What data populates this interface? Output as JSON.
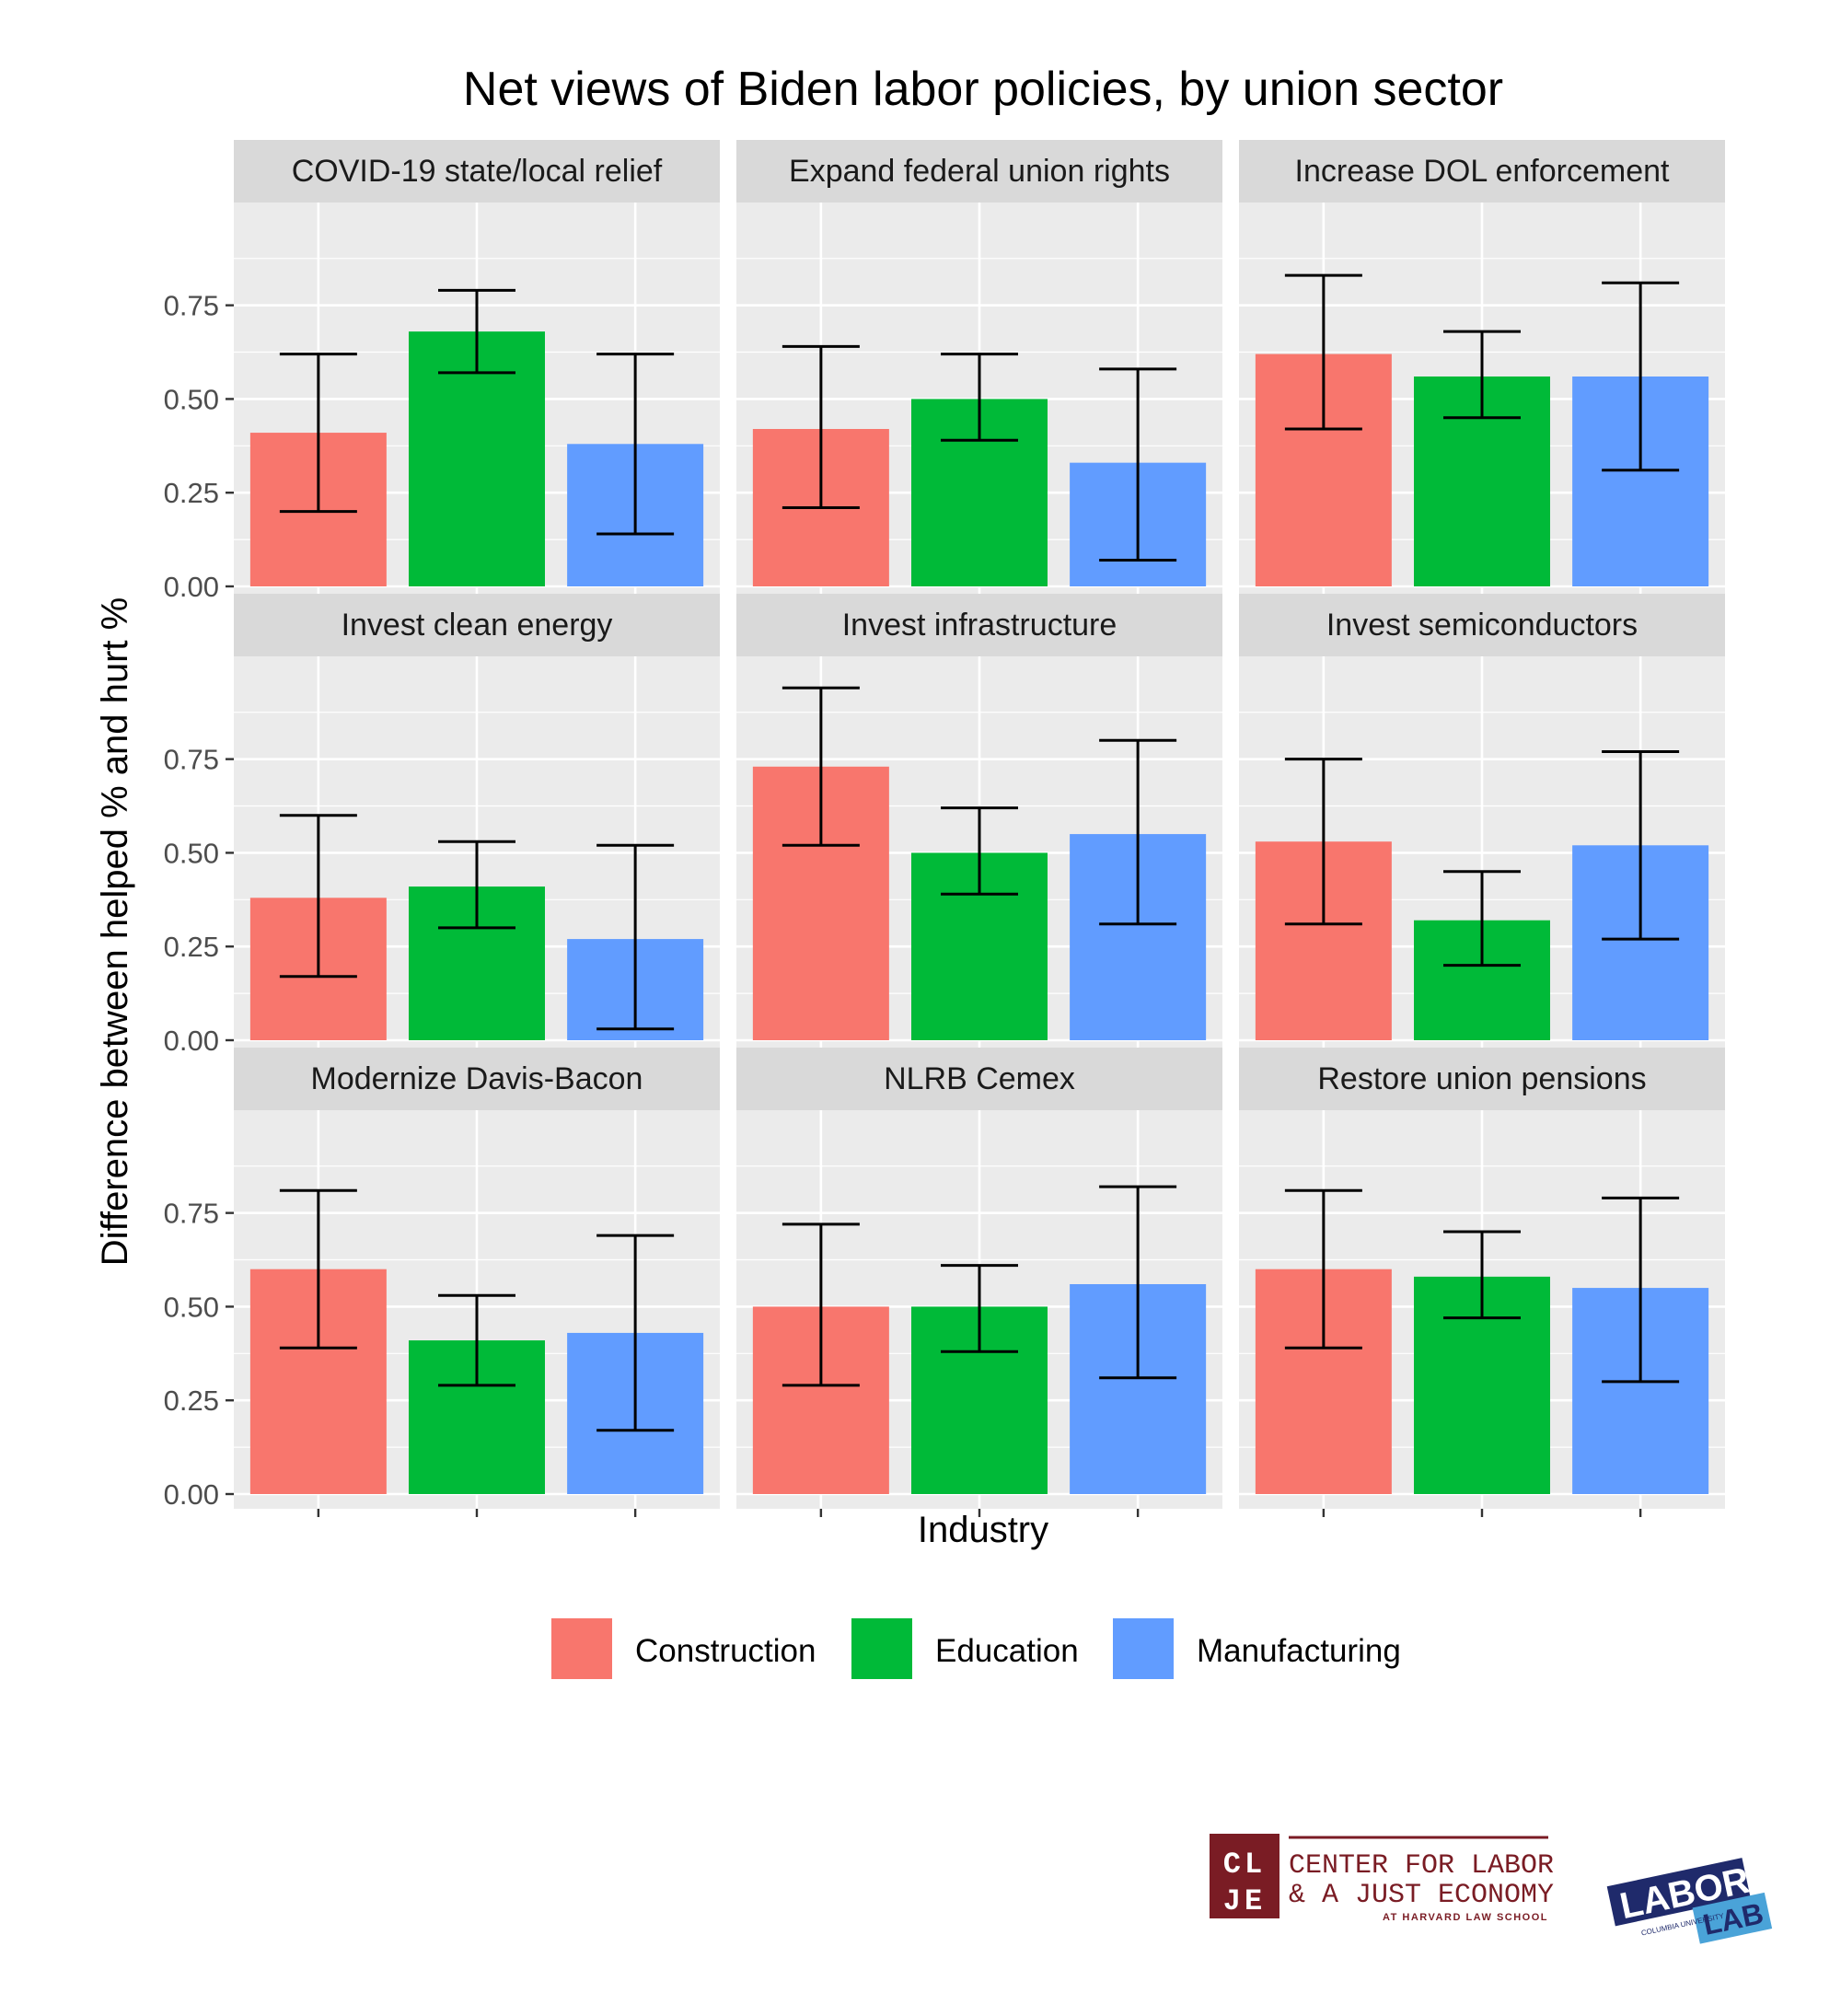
{
  "chart_data": {
    "type": "bar",
    "title": "Net views of Biden labor policies, by union sector",
    "xlabel": "Industry",
    "ylabel": "Difference between helped % and hurt %",
    "ylim": [
      0,
      0.98
    ],
    "yticks": [
      "0.00",
      "0.25",
      "0.50",
      "0.75"
    ],
    "ytick_values": [
      0,
      0.25,
      0.5,
      0.75
    ],
    "categories": [
      "Construction",
      "Education",
      "Manufacturing"
    ],
    "colors": {
      "Construction": "#F8766D",
      "Education": "#00BA38",
      "Manufacturing": "#619CFF"
    },
    "grid": true,
    "legend_position": "bottom",
    "panels": [
      {
        "name": "COVID-19 state/local relief",
        "values": [
          0.41,
          0.68,
          0.38
        ],
        "lower": [
          0.2,
          0.57,
          0.14
        ],
        "upper": [
          0.62,
          0.79,
          0.62
        ]
      },
      {
        "name": "Expand federal union rights",
        "values": [
          0.42,
          0.5,
          0.33
        ],
        "lower": [
          0.21,
          0.39,
          0.07
        ],
        "upper": [
          0.64,
          0.62,
          0.58
        ]
      },
      {
        "name": "Increase DOL enforcement",
        "values": [
          0.62,
          0.56,
          0.56
        ],
        "lower": [
          0.42,
          0.45,
          0.31
        ],
        "upper": [
          0.83,
          0.68,
          0.81
        ]
      },
      {
        "name": "Invest clean energy",
        "values": [
          0.38,
          0.41,
          0.27
        ],
        "lower": [
          0.17,
          0.3,
          0.03
        ],
        "upper": [
          0.6,
          0.53,
          0.52
        ]
      },
      {
        "name": "Invest infrastructure",
        "values": [
          0.73,
          0.5,
          0.55
        ],
        "lower": [
          0.52,
          0.39,
          0.31
        ],
        "upper": [
          0.94,
          0.62,
          0.8
        ]
      },
      {
        "name": "Invest semiconductors",
        "values": [
          0.53,
          0.32,
          0.52
        ],
        "lower": [
          0.31,
          0.2,
          0.27
        ],
        "upper": [
          0.75,
          0.45,
          0.77
        ]
      },
      {
        "name": "Modernize Davis-Bacon",
        "values": [
          0.6,
          0.41,
          0.43
        ],
        "lower": [
          0.39,
          0.29,
          0.17
        ],
        "upper": [
          0.81,
          0.53,
          0.69
        ]
      },
      {
        "name": "NLRB Cemex",
        "values": [
          0.5,
          0.5,
          0.56
        ],
        "lower": [
          0.29,
          0.38,
          0.31
        ],
        "upper": [
          0.72,
          0.61,
          0.82
        ]
      },
      {
        "name": "Restore union pensions",
        "values": [
          0.6,
          0.58,
          0.55
        ],
        "lower": [
          0.39,
          0.47,
          0.3
        ],
        "upper": [
          0.81,
          0.7,
          0.79
        ]
      }
    ]
  },
  "legend": {
    "items": [
      {
        "label": "Construction",
        "color": "#F8766D"
      },
      {
        "label": "Education",
        "color": "#00BA38"
      },
      {
        "label": "Manufacturing",
        "color": "#619CFF"
      }
    ]
  },
  "logos": {
    "clje": {
      "letters": "CL JE",
      "line1": "CENTER FOR LABOR",
      "line2": "& A JUST ECONOMY",
      "line3": "AT HARVARD LAW SCHOOL",
      "color": "#7a1c24"
    },
    "laborlab": {
      "word1": "LABOR",
      "word2": "LAB",
      "tag": "COLUMBIA UNIVERSITY",
      "color": "#1f2a6b",
      "accent": "#4aa3d8"
    }
  }
}
